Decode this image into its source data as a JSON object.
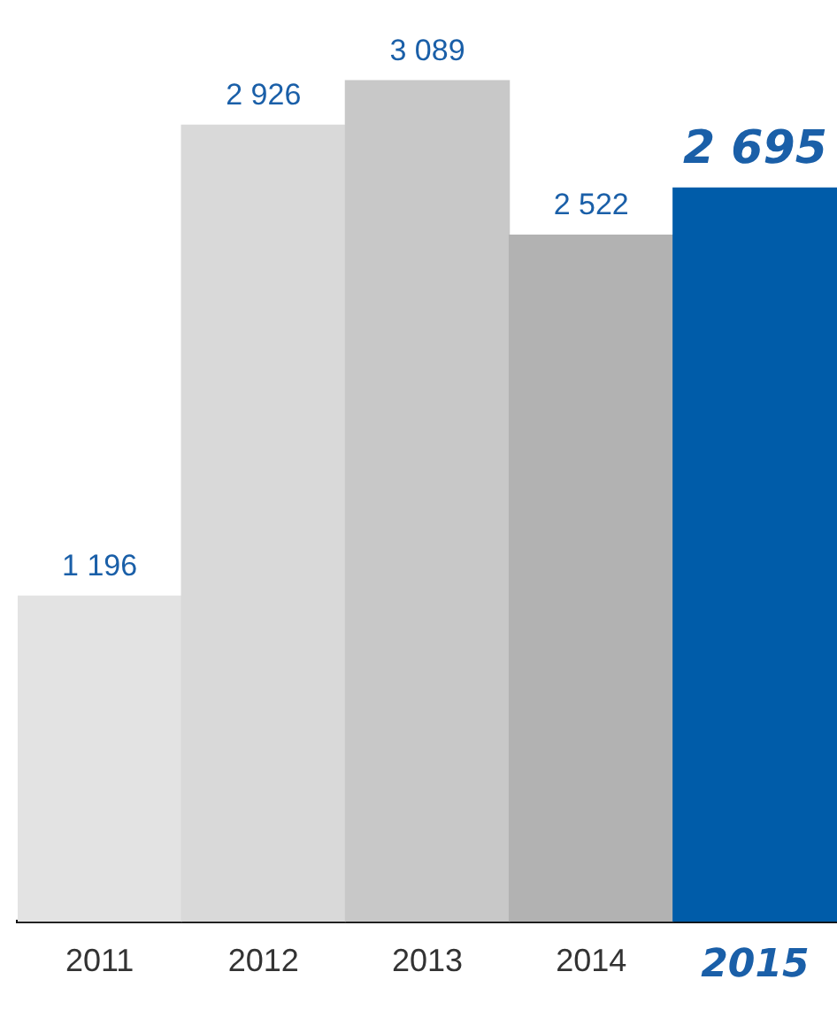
{
  "chart_data": {
    "type": "bar",
    "categories": [
      "2011",
      "2012",
      "2013",
      "2014",
      "2015"
    ],
    "values": [
      1196,
      2926,
      3089,
      2522,
      2695
    ],
    "colors": [
      "#e3e3e3",
      "#d9d9d9",
      "#c8c8c8",
      "#b2b2b2",
      "#005ca9"
    ],
    "value_labels": [
      "1 196",
      "2 926",
      "3 089",
      "2 522",
      "2 695"
    ],
    "grid": false,
    "legend": false
  }
}
